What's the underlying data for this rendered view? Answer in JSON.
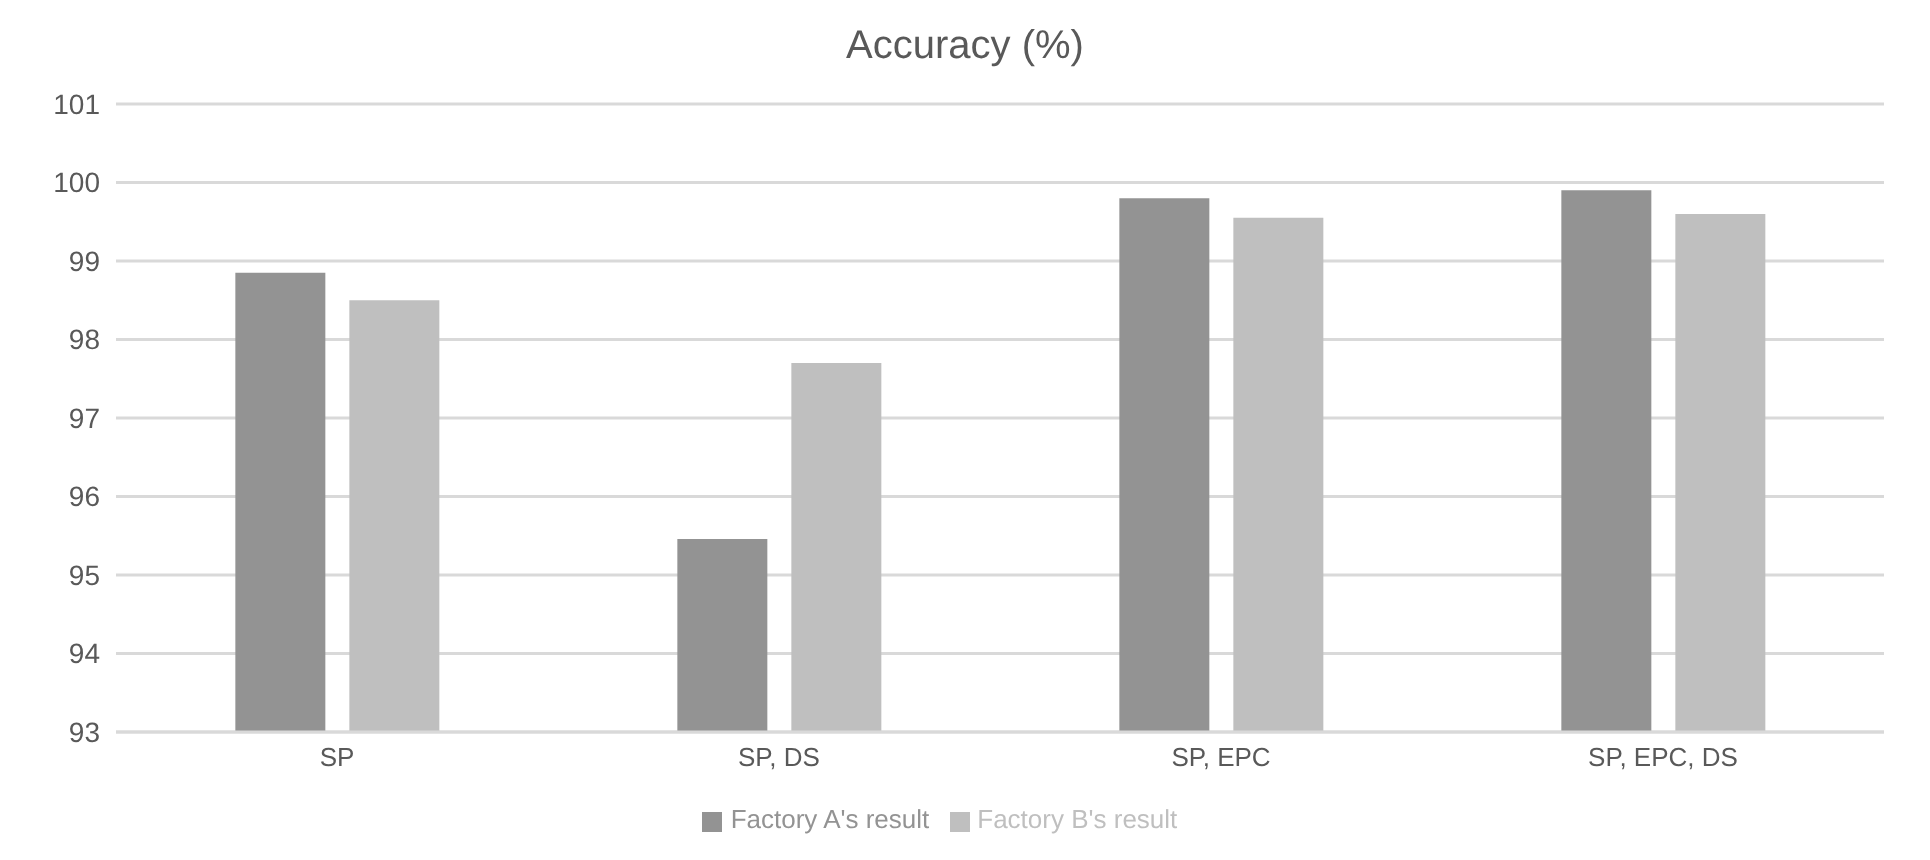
{
  "chart_data": {
    "type": "bar",
    "title": "Accuracy (%)",
    "categories": [
      "SP",
      "SP, DS",
      "SP, EPC",
      "SP, EPC, DS"
    ],
    "series": [
      {
        "name": "Factory A's result",
        "color": "#939393",
        "values": [
          98.85,
          95.46,
          99.8,
          99.9
        ]
      },
      {
        "name": "Factory B's result",
        "color": "#bfbfbf",
        "values": [
          98.5,
          97.7,
          99.55,
          99.6
        ]
      }
    ],
    "ylim": [
      93,
      101
    ],
    "yticks": [
      93,
      94,
      95,
      96,
      97,
      98,
      99,
      100,
      101
    ],
    "grid": "y",
    "legend": "bottom"
  }
}
